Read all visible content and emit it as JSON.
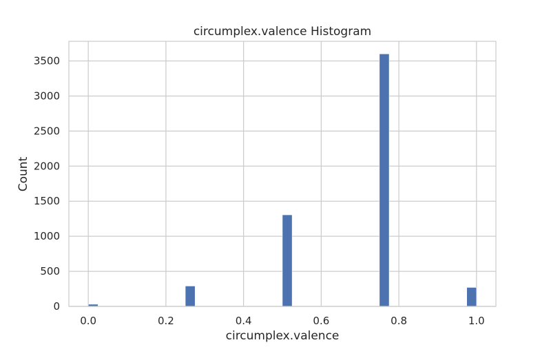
{
  "chart_data": {
    "type": "bar",
    "title": "circumplex.valence Histogram",
    "xlabel": "circumplex.valence",
    "ylabel": "Count",
    "xlim": [
      -0.05,
      1.05
    ],
    "ylim": [
      0,
      3780
    ],
    "x_ticks": [
      "0.0",
      "0.2",
      "0.4",
      "0.6",
      "0.8",
      "1.0"
    ],
    "y_ticks": [
      "0",
      "500",
      "1000",
      "1500",
      "2000",
      "2500",
      "3000",
      "3500"
    ],
    "grid": true,
    "bins": [
      {
        "x0": 0.0,
        "x1": 0.025,
        "count": 30
      },
      {
        "x0": 0.25,
        "x1": 0.275,
        "count": 290
      },
      {
        "x0": 0.5,
        "x1": 0.525,
        "count": 1305
      },
      {
        "x0": 0.75,
        "x1": 0.775,
        "count": 3600
      },
      {
        "x0": 0.975,
        "x1": 1.0,
        "count": 270
      }
    ],
    "bar_color": "#4c72b0",
    "grid_color": "#cccccc",
    "axes_edge_color": "#cccccc"
  }
}
